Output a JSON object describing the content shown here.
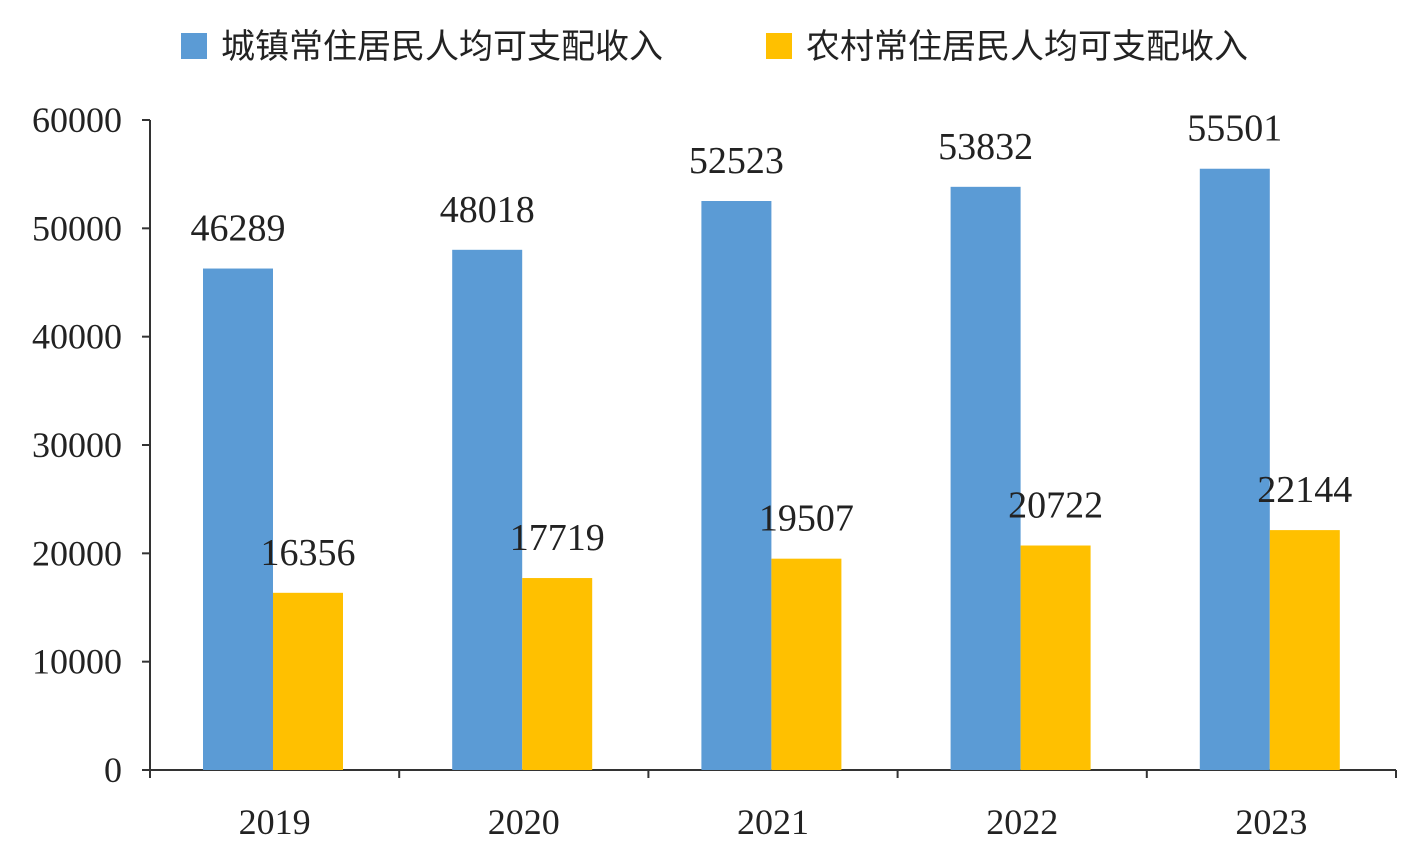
{
  "chart_data": {
    "type": "bar",
    "categories": [
      "2019",
      "2020",
      "2021",
      "2022",
      "2023"
    ],
    "series": [
      {
        "name": "城镇常住居民人均可支配收入",
        "color": "#5b9bd5",
        "values": [
          46289,
          48018,
          52523,
          53832,
          55501
        ]
      },
      {
        "name": "农村常住居民人均可支配收入",
        "color": "#ffc000",
        "values": [
          16356,
          17719,
          19507,
          20722,
          22144
        ]
      }
    ],
    "ylim": [
      0,
      60000
    ],
    "yticks": [
      "0",
      "10000",
      "20000",
      "30000",
      "40000",
      "50000",
      "60000"
    ],
    "legend_position": "top",
    "grid": false,
    "data_labels": true
  }
}
